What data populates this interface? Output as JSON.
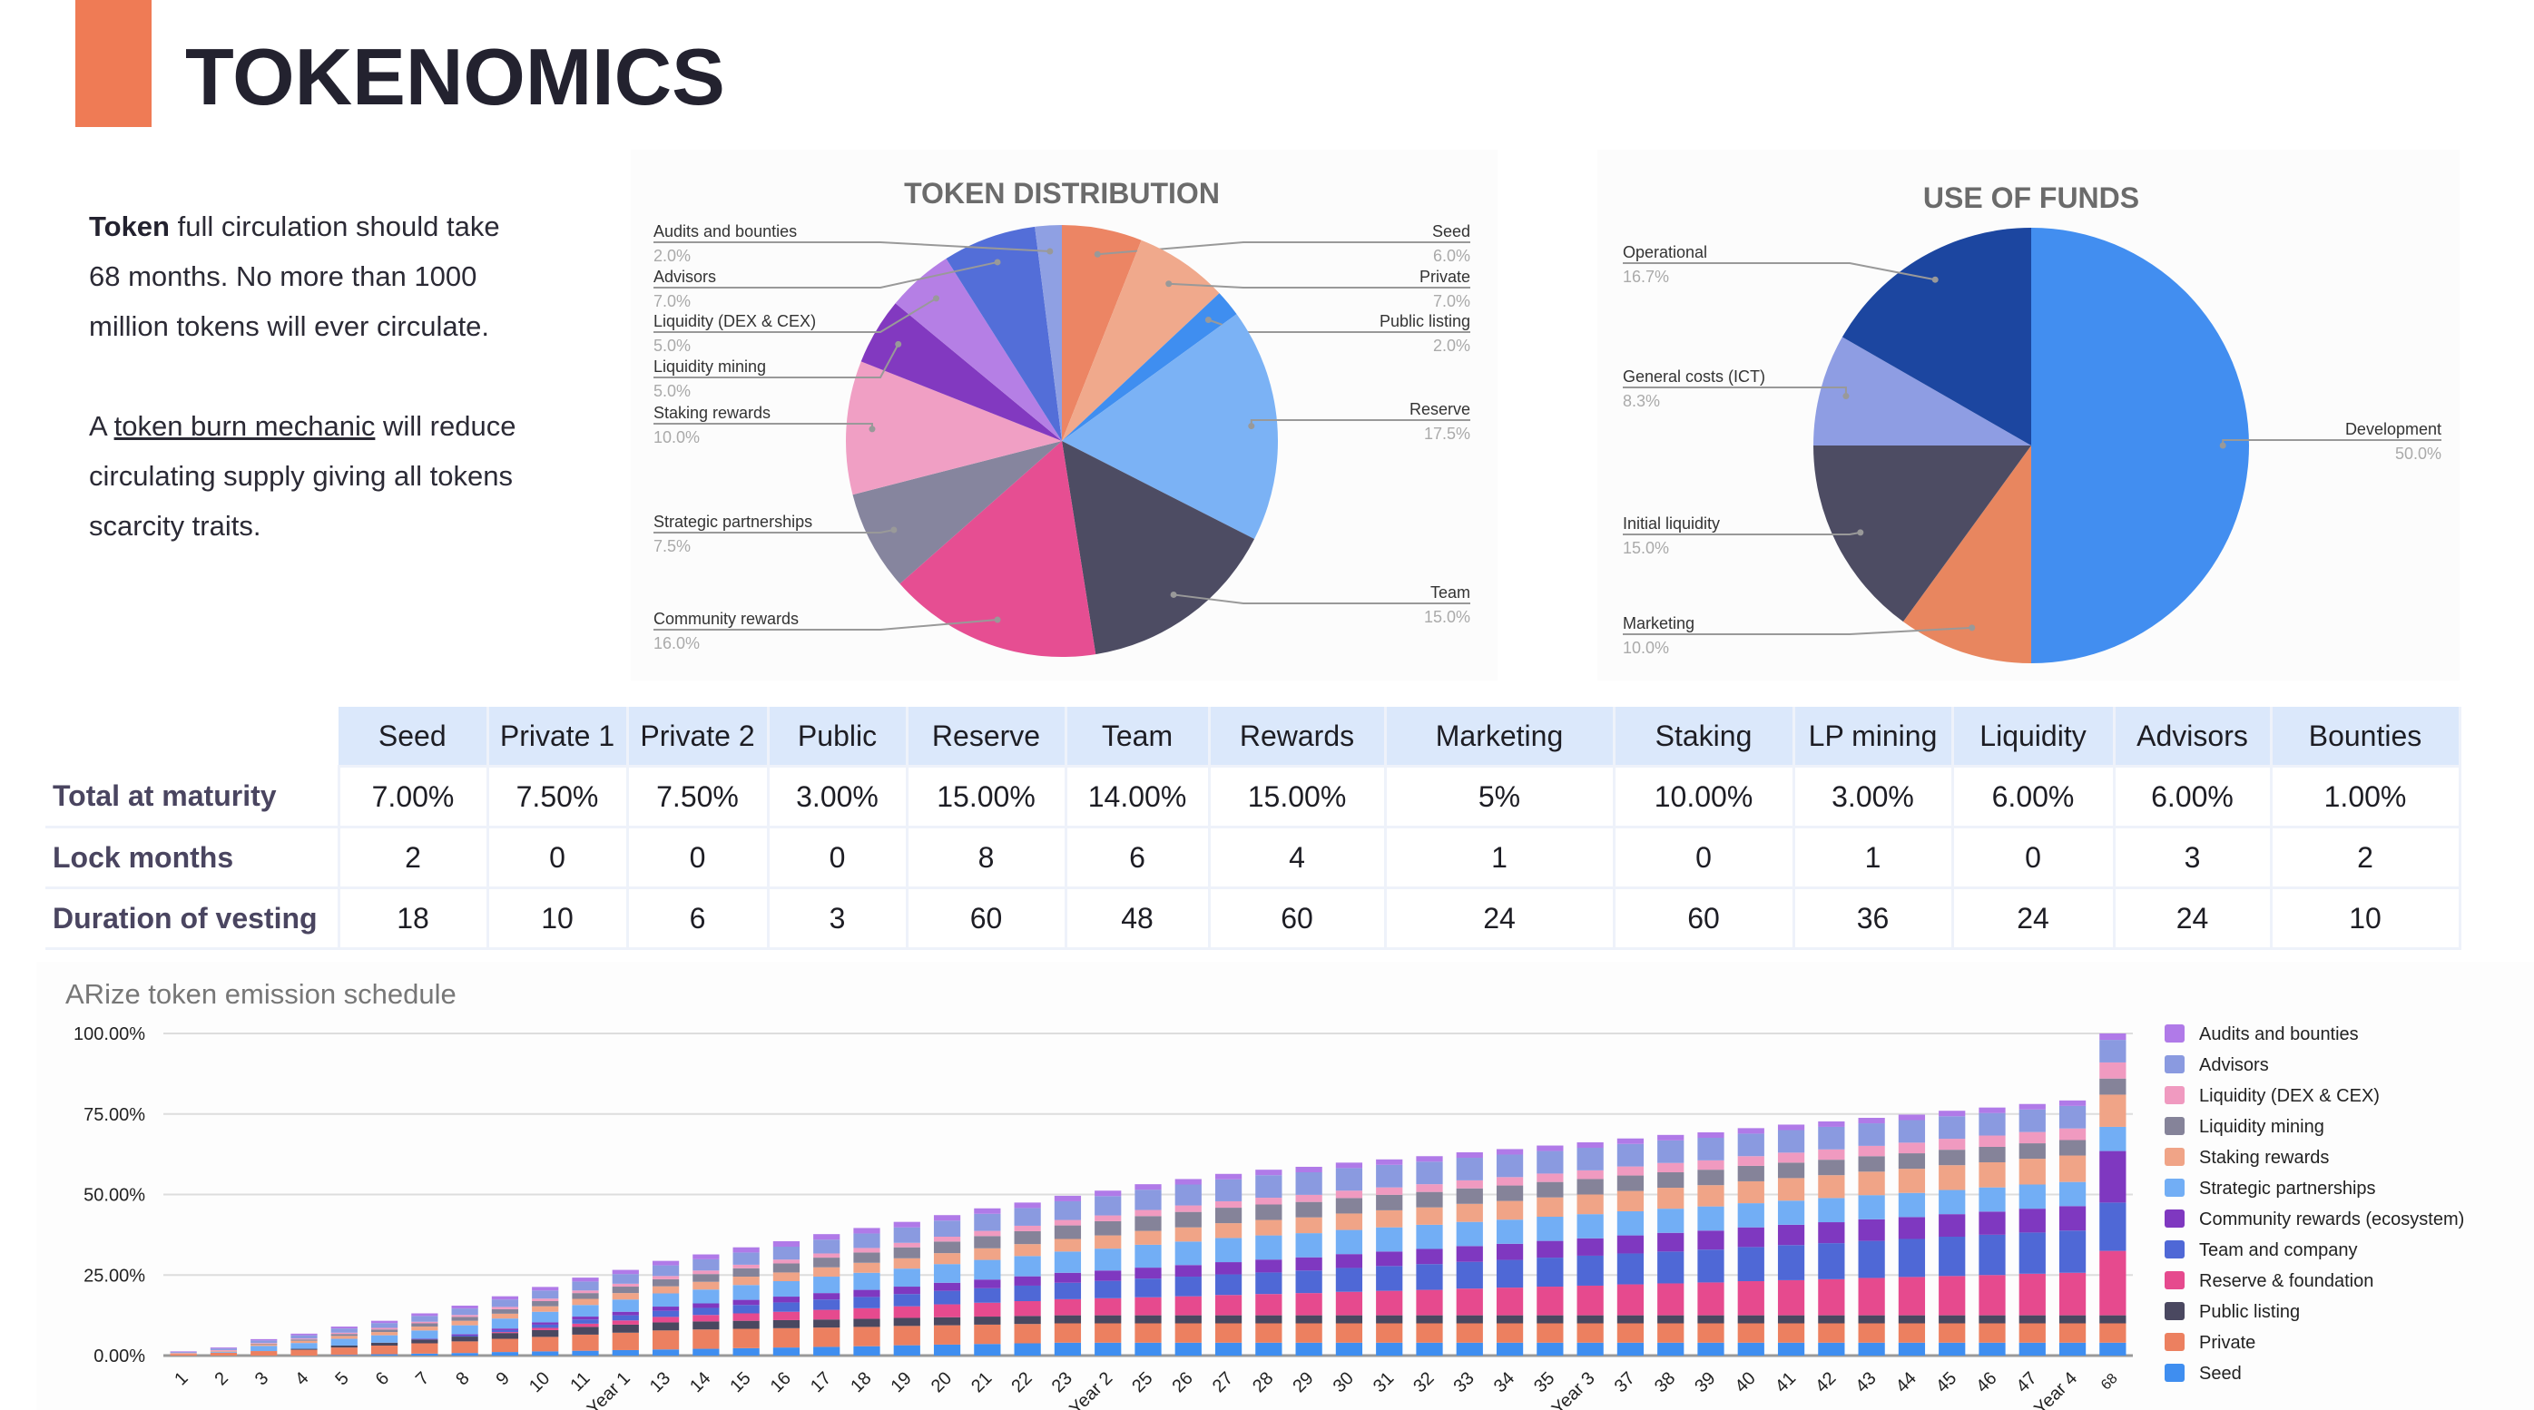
{
  "header": {
    "title": "TOKENOMICS",
    "accent_color": "#ef7b55"
  },
  "intro": {
    "p1_bold": "Token",
    "p1_rest": " full circulation should take 68 months. No more than 1000 million tokens will ever circulate.",
    "p2_start": "A ",
    "p2_link": "token burn mechanic",
    "p2_end": " will reduce circulating supply giving all tokens scarcity traits."
  },
  "table": {
    "columns": [
      "Seed",
      "Private 1",
      "Private 2",
      "Public",
      "Reserve",
      "Team",
      "Rewards",
      "Marketing",
      "Staking",
      "LP mining",
      "Liquidity",
      "Advisors",
      "Bounties"
    ],
    "rows": [
      {
        "label": "Total at maturity",
        "values": [
          "7.00%",
          "7.50%",
          "7.50%",
          "3.00%",
          "15.00%",
          "14.00%",
          "15.00%",
          "5%",
          "10.00%",
          "3.00%",
          "6.00%",
          "6.00%",
          "1.00%"
        ]
      },
      {
        "label": "Lock months",
        "values": [
          "2",
          "0",
          "0",
          "0",
          "8",
          "6",
          "4",
          "1",
          "0",
          "1",
          "0",
          "3",
          "2"
        ]
      },
      {
        "label": "Duration of vesting",
        "values": [
          "18",
          "10",
          "6",
          "3",
          "60",
          "48",
          "60",
          "24",
          "60",
          "36",
          "24",
          "24",
          "10"
        ]
      }
    ]
  },
  "chart_data": [
    {
      "type": "pie",
      "title": "TOKEN DISTRIBUTION",
      "slices": [
        {
          "label": "Seed",
          "value": 6.0,
          "color": "#ec8564"
        },
        {
          "label": "Private",
          "value": 7.0,
          "color": "#f0a98c"
        },
        {
          "label": "Public listing",
          "value": 2.0,
          "color": "#3f8ef0"
        },
        {
          "label": "Reserve",
          "value": 17.5,
          "color": "#7bb2f5"
        },
        {
          "label": "Team",
          "value": 15.0,
          "color": "#4d4c63"
        },
        {
          "label": "Community rewards",
          "value": 16.0,
          "color": "#e64e92"
        },
        {
          "label": "Strategic partnerships",
          "value": 7.5,
          "color": "#86859e"
        },
        {
          "label": "Staking rewards",
          "value": 10.0,
          "color": "#f09fc4"
        },
        {
          "label": "Liquidity mining",
          "value": 5.0,
          "color": "#8239c0"
        },
        {
          "label": "Liquidity (DEX & CEX)",
          "value": 5.0,
          "color": "#b57fe5"
        },
        {
          "label": "Advisors",
          "value": 7.0,
          "color": "#536ed8"
        },
        {
          "label": "Audits and bounties",
          "value": 2.0,
          "color": "#8fa0e3"
        }
      ]
    },
    {
      "type": "pie",
      "title": "USE OF FUNDS",
      "slices": [
        {
          "label": "Development",
          "value": 50.0,
          "color": "#428ef0"
        },
        {
          "label": "Marketing",
          "value": 10.0,
          "color": "#e8865f"
        },
        {
          "label": "Initial liquidity",
          "value": 15.0,
          "color": "#4d4c63"
        },
        {
          "label": "General costs (ICT)",
          "value": 8.3,
          "color": "#8e9de3"
        },
        {
          "label": "Operational",
          "value": 16.7,
          "color": "#1c46a0"
        }
      ]
    },
    {
      "type": "bar",
      "stacked": true,
      "title": "ARize token emission schedule",
      "ylim": [
        0,
        100
      ],
      "yticks": [
        "0.00%",
        "25.00%",
        "50.00%",
        "75.00%",
        "100.00%"
      ],
      "grid": true,
      "legend": "right",
      "categories": [
        "1",
        "2",
        "3",
        "4",
        "5",
        "6",
        "7",
        "8",
        "9",
        "10",
        "11",
        "Year 1",
        "13",
        "14",
        "15",
        "16",
        "17",
        "18",
        "19",
        "20",
        "21",
        "22",
        "23",
        "Year 2",
        "25",
        "26",
        "27",
        "28",
        "29",
        "30",
        "31",
        "32",
        "33",
        "34",
        "35",
        "Year 3",
        "37",
        "38",
        "39",
        "40",
        "41",
        "42",
        "43",
        "44",
        "45",
        "46",
        "47",
        "Year 4",
        "68"
      ],
      "series": [
        {
          "name": "Seed",
          "color": "#3f8ef0",
          "values": [
            0,
            0,
            0,
            0,
            0.2,
            0.4,
            0.6,
            0.8,
            1.1,
            1.3,
            1.5,
            1.7,
            1.9,
            2.1,
            2.3,
            2.5,
            2.7,
            2.9,
            3.2,
            3.4,
            3.6,
            3.8,
            4,
            4,
            4,
            4,
            4,
            4,
            4,
            4,
            4,
            4,
            4,
            4,
            4,
            4,
            4,
            4,
            4,
            4,
            4,
            4,
            4,
            4,
            4,
            4,
            4,
            4,
            4
          ]
        },
        {
          "name": "Private",
          "color": "#ec8060",
          "values": [
            0.5,
            0.9,
            1.4,
            1.8,
            2.3,
            2.7,
            3.2,
            3.6,
            4.1,
            4.5,
            5,
            5.4,
            5.9,
            6,
            6,
            6,
            6,
            6,
            6,
            6,
            6,
            6,
            6,
            6,
            6,
            6,
            6,
            6,
            6,
            6,
            6,
            6,
            6,
            6,
            6,
            6,
            6,
            6,
            6,
            6,
            6,
            6,
            6,
            6,
            6,
            6,
            6,
            6,
            6
          ]
        },
        {
          "name": "Public listing",
          "color": "#4a4860",
          "values": [
            0,
            0,
            0,
            0.3,
            0.6,
            0.9,
            1.2,
            1.5,
            1.8,
            2.1,
            2.4,
            2.5,
            2.5,
            2.5,
            2.5,
            2.5,
            2.5,
            2.5,
            2.5,
            2.5,
            2.5,
            2.5,
            2.5,
            2.5,
            2.5,
            2.5,
            2.5,
            2.5,
            2.5,
            2.5,
            2.5,
            2.5,
            2.5,
            2.5,
            2.5,
            2.5,
            2.5,
            2.5,
            2.5,
            2.5,
            2.5,
            2.5,
            2.5,
            2.5,
            2.5,
            2.5,
            2.5,
            2.5,
            2.5
          ]
        },
        {
          "name": "Reserve & foundation",
          "color": "#e64a8e",
          "values": [
            0,
            0,
            0,
            0,
            0,
            0,
            0,
            0,
            0.3,
            0.7,
            1,
            1.3,
            1.7,
            2,
            2.3,
            2.6,
            3,
            3.3,
            3.6,
            4,
            4.3,
            4.6,
            5,
            5.3,
            5.6,
            5.9,
            6.3,
            6.6,
            6.9,
            7.3,
            7.6,
            7.9,
            8.3,
            8.6,
            8.9,
            9.2,
            9.6,
            9.9,
            10.2,
            10.6,
            10.9,
            11.2,
            11.6,
            11.9,
            12.2,
            12.5,
            12.9,
            13.2,
            20
          ]
        },
        {
          "name": "Team and company",
          "color": "#4f68d6",
          "values": [
            0,
            0,
            0,
            0,
            0,
            0,
            0,
            0.3,
            0.6,
            1,
            1.3,
            1.6,
            1.9,
            2.2,
            2.6,
            2.9,
            3.2,
            3.5,
            3.8,
            4.2,
            4.5,
            4.8,
            5.1,
            5.4,
            5.8,
            6.1,
            6.4,
            6.7,
            7,
            7.4,
            7.7,
            8,
            8.3,
            8.6,
            9,
            9.3,
            9.6,
            9.9,
            10.2,
            10.6,
            10.9,
            11.2,
            11.5,
            11.8,
            12.2,
            12.5,
            12.8,
            13.1,
            15
          ]
        },
        {
          "name": "Community rewards (ecosystem)",
          "color": "#7f38c0",
          "values": [
            0,
            0,
            0,
            0,
            0,
            0,
            0.2,
            0.4,
            0.5,
            0.7,
            0.9,
            1.1,
            1.3,
            1.4,
            1.6,
            1.8,
            2,
            2.2,
            2.3,
            2.5,
            2.7,
            2.9,
            3.1,
            3.2,
            3.4,
            3.6,
            3.8,
            4,
            4.1,
            4.3,
            4.5,
            4.7,
            4.9,
            5,
            5.2,
            5.4,
            5.6,
            5.8,
            5.9,
            6.1,
            6.3,
            6.5,
            6.7,
            6.8,
            7,
            7.2,
            7.4,
            7.6,
            16
          ]
        },
        {
          "name": "Strategic partnerships",
          "color": "#72aef5",
          "values": [
            0,
            0.3,
            1.6,
            1.8,
            2.1,
            2.3,
            2.6,
            2.8,
            3.1,
            3.3,
            3.6,
            3.8,
            4.1,
            4.3,
            4.6,
            4.8,
            5.1,
            5.3,
            5.6,
            5.8,
            6.1,
            6.3,
            6.6,
            6.8,
            7.1,
            7.3,
            7.5,
            7.5,
            7.5,
            7.5,
            7.5,
            7.5,
            7.5,
            7.5,
            7.5,
            7.5,
            7.5,
            7.5,
            7.5,
            7.5,
            7.5,
            7.5,
            7.5,
            7.5,
            7.5,
            7.5,
            7.5,
            7.5,
            7.5
          ]
        },
        {
          "name": "Staking rewards",
          "color": "#f0a487",
          "values": [
            0.2,
            0.3,
            0.5,
            0.7,
            0.9,
            1,
            1.2,
            1.4,
            1.5,
            1.7,
            1.9,
            2,
            2.2,
            2.4,
            2.6,
            2.7,
            2.9,
            3.1,
            3.2,
            3.4,
            3.6,
            3.7,
            3.9,
            4.1,
            4.3,
            4.4,
            4.6,
            4.8,
            4.9,
            5.1,
            5.3,
            5.4,
            5.6,
            5.8,
            6,
            6.1,
            6.3,
            6.5,
            6.6,
            6.8,
            7,
            7.1,
            7.3,
            7.5,
            7.7,
            7.8,
            8,
            8.2,
            10
          ]
        },
        {
          "name": "Liquidity mining",
          "color": "#858399",
          "values": [
            0,
            0,
            0.2,
            0.4,
            0.6,
            0.8,
            1,
            1.2,
            1.4,
            1.6,
            1.8,
            2,
            2.2,
            2.4,
            2.6,
            2.8,
            3,
            3.2,
            3.4,
            3.6,
            3.8,
            4,
            4.2,
            4.4,
            4.6,
            4.8,
            4.8,
            4.8,
            4.8,
            4.8,
            4.8,
            4.8,
            4.8,
            4.8,
            4.8,
            4.8,
            4.8,
            4.8,
            4.8,
            4.8,
            4.8,
            4.8,
            4.8,
            4.8,
            4.8,
            4.8,
            4.8,
            4.8,
            5
          ]
        },
        {
          "name": "Liquidity (DEX & CEX)",
          "color": "#f09ac0",
          "values": [
            0.1,
            0.2,
            0.2,
            0.3,
            0.4,
            0.5,
            0.5,
            0.6,
            0.7,
            0.8,
            0.8,
            0.9,
            1,
            1.1,
            1.1,
            1.2,
            1.3,
            1.4,
            1.4,
            1.5,
            1.6,
            1.7,
            1.7,
            1.8,
            1.9,
            2,
            2,
            2.1,
            2.2,
            2.3,
            2.3,
            2.4,
            2.5,
            2.6,
            2.6,
            2.7,
            2.8,
            2.9,
            2.9,
            3,
            3.1,
            3.2,
            3.2,
            3.3,
            3.4,
            3.5,
            3.5,
            3.6,
            5
          ]
        },
        {
          "name": "Advisors",
          "color": "#8a9ae0",
          "values": [
            0.3,
            0.5,
            0.8,
            1,
            1.3,
            1.5,
            1.8,
            2,
            2.3,
            2.5,
            2.8,
            3,
            3.3,
            3.5,
            3.8,
            4,
            4.3,
            4.5,
            4.8,
            5,
            5.3,
            5.5,
            5.8,
            6,
            6.3,
            6.5,
            6.8,
            7,
            7,
            7,
            7,
            7,
            7,
            7,
            7,
            7,
            7,
            7,
            7,
            7,
            7,
            7,
            7,
            7,
            7,
            7,
            7,
            7,
            7
          ]
        },
        {
          "name": "Audits and bounties",
          "color": "#b07ae8",
          "values": [
            0.2,
            0.3,
            0.4,
            0.5,
            0.6,
            0.7,
            0.8,
            0.9,
            1,
            1.1,
            1.2,
            1.3,
            1.4,
            1.5,
            1.6,
            1.7,
            1.7,
            1.7,
            1.7,
            1.7,
            1.7,
            1.7,
            1.7,
            1.7,
            1.7,
            1.7,
            1.7,
            1.7,
            1.7,
            1.7,
            1.7,
            1.7,
            1.7,
            1.7,
            1.7,
            1.7,
            1.7,
            1.7,
            1.7,
            1.7,
            1.7,
            1.7,
            1.7,
            1.7,
            1.7,
            1.7,
            1.7,
            1.7,
            2
          ]
        }
      ]
    }
  ]
}
